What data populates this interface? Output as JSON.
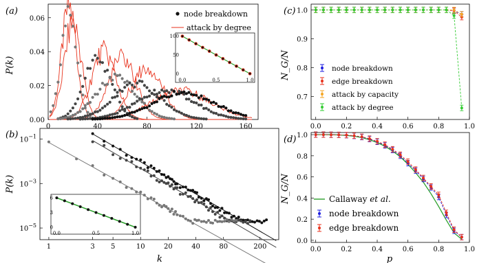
{
  "colors": {
    "black": "#111111",
    "dark_gray": "#444444",
    "gray": "#777777",
    "light_gray": "#999999",
    "red": "#e8321c",
    "green": "#2ca02c",
    "bright_green": "#33cc33",
    "blue": "#1f1fe0",
    "orange": "#f5a623"
  },
  "chart_data": [
    {
      "panel": "(a)",
      "type": "scatter",
      "xlabel": "",
      "ylabel": "P(k)",
      "xlim": [
        0,
        170
      ],
      "ylim": [
        0,
        0.068
      ],
      "xticks": [
        "0",
        "40",
        "80",
        "120",
        "160"
      ],
      "xtick_values": [
        0,
        40,
        80,
        120,
        160
      ],
      "yticks": [
        "0.00",
        "0.02",
        "0.04",
        "0.06"
      ],
      "ytick_values": [
        0,
        0.02,
        0.04,
        0.06
      ],
      "legend": [
        "node breakdown",
        "attack by degree"
      ],
      "legend_position": "top-right",
      "series": [
        {
          "name": "node breakdown",
          "shade": "gray",
          "mean": 17,
          "sd": 6.5
        },
        {
          "name": "node breakdown",
          "shade": "dark_gray",
          "mean": 40,
          "sd": 11
        },
        {
          "name": "node breakdown",
          "shade": "gray",
          "mean": 55,
          "sd": 16
        },
        {
          "name": "node breakdown",
          "shade": "dark_gray",
          "mean": 72,
          "sd": 19
        },
        {
          "name": "node breakdown",
          "shade": "dark_gray",
          "mean": 95,
          "sd": 23
        },
        {
          "name": "node breakdown",
          "shade": "black",
          "mean": 110,
          "sd": 25
        }
      ],
      "red_lines": [
        {
          "name": "attack by degree",
          "mean": 17,
          "sd": 6
        },
        {
          "name": "attack by degree",
          "mean": 20,
          "sd": 7
        },
        {
          "name": "attack by degree",
          "mean": 45,
          "sd": 10
        },
        {
          "name": "attack by degree",
          "mean": 60,
          "sd": 11
        },
        {
          "name": "attack by degree",
          "mean": 80,
          "sd": 13
        },
        {
          "name": "attack by degree",
          "mean": 108,
          "sd": 24
        }
      ],
      "inset": {
        "xticks": [
          "0.0",
          "0.5",
          "1.0"
        ],
        "xtick_values": [
          0,
          0.5,
          1
        ],
        "yticks": [
          "0",
          "50",
          "100"
        ],
        "ytick_values": [
          0,
          50,
          100
        ],
        "x": [
          0,
          0.1,
          0.2,
          0.3,
          0.4,
          0.5,
          0.6,
          0.7,
          0.8,
          0.9,
          1.0
        ],
        "y": [
          100,
          90,
          80,
          70,
          60,
          50,
          40,
          30,
          20,
          10,
          0
        ]
      }
    },
    {
      "panel": "(b)",
      "type": "scatter",
      "xlabel": "k",
      "ylabel": "P(k)",
      "xscale": "log",
      "yscale": "log",
      "xlim": [
        0.8,
        320
      ],
      "ylim": [
        3e-06,
        0.3
      ],
      "xticks": [
        "1",
        "3",
        "5",
        "10",
        "20",
        "40",
        "80",
        "200"
      ],
      "xtick_values": [
        1,
        3,
        5,
        10,
        20,
        40,
        80,
        200
      ],
      "yticks": [
        "10^-1",
        "10^-3",
        "10^-5"
      ],
      "ytick_values": [
        0.1,
        0.001,
        1e-05
      ],
      "series": [
        {
          "shade": "black",
          "from": 3,
          "gamma": 2.4,
          "c": 0.17,
          "tail": 150
        },
        {
          "shade": "dark_gray",
          "from": 3,
          "gamma": 2.4,
          "c": 0.085,
          "tail": 100
        },
        {
          "shade": "gray",
          "from": 1,
          "gamma": 2.3,
          "c": 0.07,
          "tail": 70
        }
      ],
      "inset": {
        "xticks": [
          "0.0",
          "0.5",
          "1.0"
        ],
        "xtick_values": [
          0,
          0.5,
          1
        ],
        "yticks": [
          "0",
          "3",
          "6"
        ],
        "ytick_values": [
          0,
          3,
          6
        ],
        "x": [
          0,
          0.1,
          0.2,
          0.3,
          0.4,
          0.5,
          0.6,
          0.7,
          0.8,
          0.9,
          1.0
        ],
        "y": [
          6,
          5.4,
          4.8,
          4.2,
          3.6,
          3.0,
          2.4,
          1.8,
          1.2,
          0.6,
          0
        ]
      }
    },
    {
      "panel": "(c)",
      "type": "line",
      "xlabel": "",
      "ylabel": "N_G/N",
      "xlim": [
        -0.03,
        1.0
      ],
      "ylim": [
        0.62,
        1.02
      ],
      "xticks": [
        "0.0",
        "0.2",
        "0.4",
        "0.6",
        "0.8",
        "1.0"
      ],
      "xtick_values": [
        0,
        0.2,
        0.4,
        0.6,
        0.8,
        1.0
      ],
      "yticks": [
        "0.7",
        "0.8",
        "0.9",
        "1.0"
      ],
      "ytick_values": [
        0.7,
        0.8,
        0.9,
        1.0
      ],
      "legend": [
        "node breakdown",
        "edge breakdown",
        "attack by capacity",
        "attack by degree"
      ],
      "legend_position": "lower-left",
      "x": [
        0,
        0.05,
        0.1,
        0.15,
        0.2,
        0.25,
        0.3,
        0.35,
        0.4,
        0.45,
        0.5,
        0.55,
        0.6,
        0.65,
        0.7,
        0.75,
        0.8,
        0.85,
        0.9,
        0.95
      ],
      "series": [
        {
          "name": "node breakdown",
          "color": "blue",
          "values": [
            1,
            1,
            1,
            1,
            1,
            1,
            1,
            1,
            1,
            1,
            1,
            1,
            1,
            1,
            1,
            1,
            1,
            1,
            0.997,
            0.985
          ]
        },
        {
          "name": "edge breakdown",
          "color": "red",
          "values": [
            1,
            1,
            1,
            1,
            1,
            1,
            1,
            1,
            1,
            1,
            1,
            1,
            1,
            1,
            1,
            1,
            1,
            1,
            0.997,
            0.975
          ]
        },
        {
          "name": "attack by capacity",
          "color": "orange",
          "values": [
            1,
            1,
            1,
            1,
            1,
            1,
            1,
            1,
            1,
            1,
            1,
            1,
            1,
            1,
            1,
            1,
            1,
            1,
            1,
            0.985
          ]
        },
        {
          "name": "attack by degree",
          "color": "bright_green",
          "values": [
            1,
            1,
            1,
            1,
            1,
            1,
            1,
            1,
            1,
            1,
            1,
            1,
            1,
            1,
            1,
            1,
            1,
            1,
            0.98,
            0.66
          ]
        }
      ]
    },
    {
      "panel": "(d)",
      "type": "line",
      "xlabel": "p",
      "ylabel": "N_G/N",
      "xlim": [
        -0.03,
        1.0
      ],
      "ylim": [
        -0.02,
        1.02
      ],
      "xticks": [
        "0.0",
        "0.2",
        "0.4",
        "0.6",
        "0.8",
        "1.0"
      ],
      "xtick_values": [
        0,
        0.2,
        0.4,
        0.6,
        0.8,
        1.0
      ],
      "yticks": [
        "0.0",
        "0.2",
        "0.4",
        "0.6",
        "0.8",
        "1.0"
      ],
      "ytick_values": [
        0,
        0.2,
        0.4,
        0.6,
        0.8,
        1.0
      ],
      "legend": [
        "Callaway et al.",
        "node breakdown",
        "edge breakdown"
      ],
      "legend_position": "lower-left",
      "x": [
        0,
        0.05,
        0.1,
        0.15,
        0.2,
        0.25,
        0.3,
        0.35,
        0.4,
        0.45,
        0.5,
        0.55,
        0.6,
        0.65,
        0.7,
        0.75,
        0.8,
        0.85,
        0.9,
        0.95
      ],
      "series": [
        {
          "name": "Callaway et al.",
          "color": "green",
          "values": [
            1,
            1,
            0.999,
            0.997,
            0.993,
            0.985,
            0.972,
            0.952,
            0.925,
            0.89,
            0.845,
            0.79,
            0.72,
            0.64,
            0.55,
            0.44,
            0.32,
            0.19,
            0.07,
            0.01
          ]
        },
        {
          "name": "node breakdown",
          "color": "blue",
          "values": [
            1,
            1,
            0.999,
            0.998,
            0.995,
            0.988,
            0.977,
            0.958,
            0.932,
            0.898,
            0.855,
            0.8,
            0.73,
            0.66,
            0.58,
            0.5,
            0.41,
            0.24,
            0.09,
            0.03
          ]
        },
        {
          "name": "edge breakdown",
          "color": "red",
          "values": [
            1,
            1,
            0.999,
            0.998,
            0.996,
            0.99,
            0.98,
            0.962,
            0.937,
            0.905,
            0.862,
            0.81,
            0.745,
            0.67,
            0.59,
            0.51,
            0.43,
            0.26,
            0.1,
            0.03
          ]
        }
      ]
    }
  ]
}
